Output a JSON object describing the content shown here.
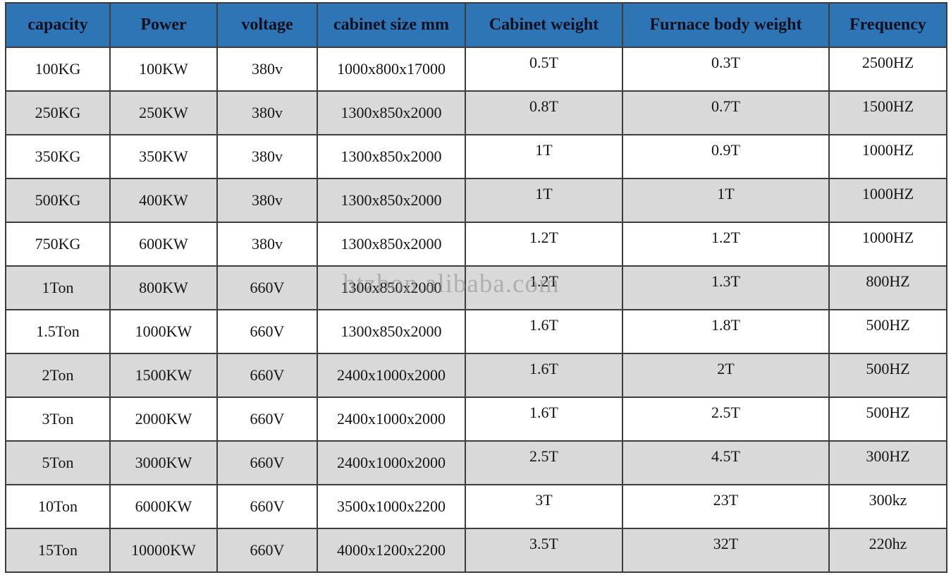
{
  "table": {
    "columns": [
      "capacity",
      "Power",
      "voltage",
      "cabinet size mm",
      "Cabinet weight",
      "Furnace body weight",
      "Frequency"
    ],
    "rows": [
      [
        "100KG",
        "100KW",
        "380v",
        "1000x800x17000",
        "0.5T",
        "0.3T",
        "2500HZ"
      ],
      [
        "250KG",
        "250KW",
        "380v",
        "1300x850x2000",
        "0.8T",
        "0.7T",
        "1500HZ"
      ],
      [
        "350KG",
        "350KW",
        "380v",
        "1300x850x2000",
        "1T",
        "0.9T",
        "1000HZ"
      ],
      [
        "500KG",
        "400KW",
        "380v",
        "1300x850x2000",
        "1T",
        "1T",
        "1000HZ"
      ],
      [
        "750KG",
        "600KW",
        "380v",
        "1300x850x2000",
        "1.2T",
        "1.2T",
        "1000HZ"
      ],
      [
        "1Ton",
        "800KW",
        "660V",
        "1300x850x2000",
        "1.2T",
        "1.3T",
        "800HZ"
      ],
      [
        "1.5Ton",
        "1000KW",
        "660V",
        "1300x850x2000",
        "1.6T",
        "1.8T",
        "500HZ"
      ],
      [
        "2Ton",
        "1500KW",
        "660V",
        "2400x1000x2000",
        "1.6T",
        "2T",
        "500HZ"
      ],
      [
        "3Ton",
        "2000KW",
        "660V",
        "2400x1000x2000",
        "1.6T",
        "2.5T",
        "500HZ"
      ],
      [
        "5Ton",
        "3000KW",
        "660V",
        "2400x1000x2000",
        "2.5T",
        "4.5T",
        "300HZ"
      ],
      [
        "10Ton",
        "6000KW",
        "660V",
        "3500x1000x2200",
        "3T",
        "23T",
        "300kz"
      ],
      [
        "15Ton",
        "10000KW",
        "660V",
        "4000x1200x2200",
        "3.5T",
        "32T",
        "220hz"
      ]
    ],
    "colors": {
      "header_bg": "#2e75b6",
      "header_text": "#0c101f",
      "row_bg": "#ffffff",
      "row_alt_bg": "#d9d9d9",
      "border": "#3d3d3d",
      "cell_text": "#151515"
    }
  },
  "watermark": {
    "text": "htzbon.alibaba.com"
  }
}
